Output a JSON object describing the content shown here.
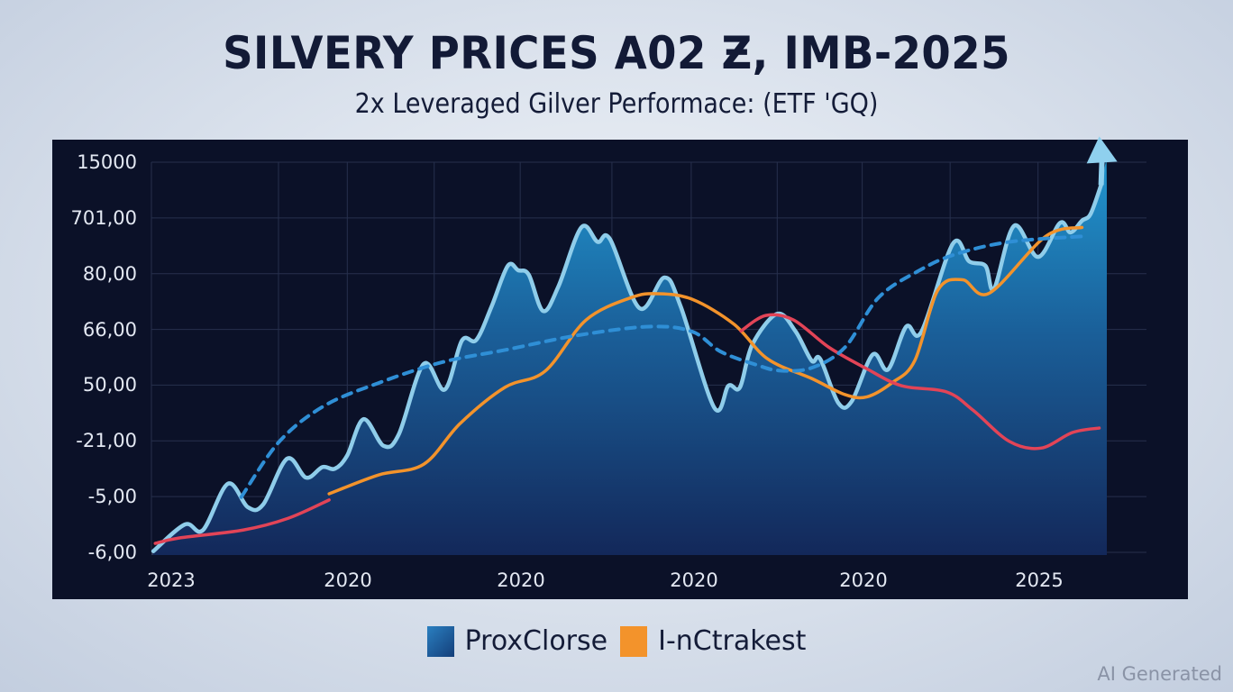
{
  "chart_data": {
    "type": "area",
    "title": "SILVERY PRICES A02 Ƶ, IMB-2025",
    "subtitle": "2x Leveraged Gilver Performace: (ETF 'GQ)",
    "xlabel": "",
    "ylabel": "",
    "y_ticks_top_to_bottom": [
      "15000",
      "701,00",
      "80,00",
      "66,00",
      "50,00",
      "-21,00",
      "-5,00",
      "-6,00"
    ],
    "y_axis_note": "Tick labels are non-monotonic; series values below are expressed in tick-index units (0 = bottom tick '-6,00', 7 = top tick '15000'); x is fraction of the time axis (0 = start, 1 = end)",
    "ylim": [
      0,
      7
    ],
    "xlim": [
      0,
      1
    ],
    "x_ticks": [
      {
        "label": "2023",
        "pos": 0.0
      },
      {
        "label": "2020",
        "pos": 0.2
      },
      {
        "label": "2020",
        "pos": 0.4
      },
      {
        "label": "2020",
        "pos": 0.6
      },
      {
        "label": "2020",
        "pos": 0.8
      },
      {
        "label": "2025",
        "pos": 1.0
      }
    ],
    "grid": true,
    "vertical_grid_positions": [
      0.0,
      0.133,
      0.205,
      0.296,
      0.386,
      0.482,
      0.565,
      0.655,
      0.744,
      0.836,
      0.928
    ],
    "legend_position": "bottom-center",
    "legend": [
      {
        "name": "ProxClorse",
        "color": "#1d5fa3"
      },
      {
        "name": "I-nCtrakest",
        "color": "#f3932b"
      }
    ],
    "series": [
      {
        "name": "ProxClorse",
        "style": "area-line",
        "line_color": "#8fcdea",
        "fill_top": "#1f8cc4",
        "fill_bottom": "#13295a",
        "end_arrow": true,
        "points": [
          [
            0.002,
            0.02
          ],
          [
            0.035,
            0.5
          ],
          [
            0.054,
            0.4
          ],
          [
            0.08,
            1.23
          ],
          [
            0.101,
            0.81
          ],
          [
            0.117,
            0.86
          ],
          [
            0.142,
            1.68
          ],
          [
            0.162,
            1.34
          ],
          [
            0.179,
            1.53
          ],
          [
            0.192,
            1.5
          ],
          [
            0.205,
            1.74
          ],
          [
            0.222,
            2.39
          ],
          [
            0.243,
            1.91
          ],
          [
            0.259,
            2.12
          ],
          [
            0.285,
            3.38
          ],
          [
            0.307,
            2.92
          ],
          [
            0.325,
            3.8
          ],
          [
            0.34,
            3.81
          ],
          [
            0.356,
            4.41
          ],
          [
            0.373,
            5.14
          ],
          [
            0.384,
            5.06
          ],
          [
            0.395,
            4.98
          ],
          [
            0.41,
            4.33
          ],
          [
            0.426,
            4.77
          ],
          [
            0.45,
            5.83
          ],
          [
            0.467,
            5.57
          ],
          [
            0.48,
            5.62
          ],
          [
            0.511,
            4.38
          ],
          [
            0.537,
            4.93
          ],
          [
            0.554,
            4.41
          ],
          [
            0.589,
            2.6
          ],
          [
            0.604,
            2.99
          ],
          [
            0.616,
            2.96
          ],
          [
            0.629,
            3.73
          ],
          [
            0.655,
            4.28
          ],
          [
            0.674,
            3.97
          ],
          [
            0.691,
            3.44
          ],
          [
            0.7,
            3.47
          ],
          [
            0.719,
            2.68
          ],
          [
            0.733,
            2.71
          ],
          [
            0.755,
            3.55
          ],
          [
            0.771,
            3.28
          ],
          [
            0.79,
            4.05
          ],
          [
            0.806,
            3.96
          ],
          [
            0.839,
            5.54
          ],
          [
            0.856,
            5.22
          ],
          [
            0.873,
            5.14
          ],
          [
            0.882,
            4.73
          ],
          [
            0.903,
            5.86
          ],
          [
            0.928,
            5.3
          ],
          [
            0.951,
            5.91
          ],
          [
            0.962,
            5.74
          ],
          [
            0.974,
            5.95
          ],
          [
            0.983,
            6.07
          ],
          [
            0.994,
            6.59
          ]
        ]
      },
      {
        "name": "I-nCtrakest",
        "style": "line",
        "color": "#f3932b",
        "points": [
          [
            0.186,
            1.05
          ],
          [
            0.238,
            1.39
          ],
          [
            0.285,
            1.58
          ],
          [
            0.323,
            2.31
          ],
          [
            0.37,
            2.96
          ],
          [
            0.412,
            3.25
          ],
          [
            0.455,
            4.17
          ],
          [
            0.502,
            4.57
          ],
          [
            0.53,
            4.64
          ],
          [
            0.566,
            4.54
          ],
          [
            0.61,
            4.09
          ],
          [
            0.645,
            3.47
          ],
          [
            0.691,
            3.12
          ],
          [
            0.726,
            2.83
          ],
          [
            0.749,
            2.79
          ],
          [
            0.775,
            3.04
          ],
          [
            0.799,
            3.44
          ],
          [
            0.823,
            4.7
          ],
          [
            0.849,
            4.89
          ],
          [
            0.877,
            4.65
          ],
          [
            0.936,
            5.67
          ],
          [
            0.974,
            5.83
          ]
        ]
      },
      {
        "name": "red-series-a",
        "style": "line",
        "color": "#e24457",
        "points": [
          [
            0.004,
            0.16
          ],
          [
            0.03,
            0.26
          ],
          [
            0.096,
            0.4
          ],
          [
            0.143,
            0.61
          ],
          [
            0.186,
            0.94
          ]
        ]
      },
      {
        "name": "red-series-b",
        "style": "line",
        "color": "#e24457",
        "points": [
          [
            0.617,
            3.97
          ],
          [
            0.643,
            4.25
          ],
          [
            0.672,
            4.17
          ],
          [
            0.709,
            3.68
          ],
          [
            0.747,
            3.31
          ],
          [
            0.785,
            2.99
          ],
          [
            0.832,
            2.88
          ],
          [
            0.86,
            2.55
          ],
          [
            0.898,
            1.99
          ],
          [
            0.931,
            1.87
          ],
          [
            0.964,
            2.15
          ],
          [
            0.992,
            2.23
          ]
        ]
      },
      {
        "name": "trend-dashed",
        "style": "dashed",
        "color": "#2f8fd6",
        "points": [
          [
            0.094,
            0.99
          ],
          [
            0.134,
            1.99
          ],
          [
            0.181,
            2.63
          ],
          [
            0.238,
            3.04
          ],
          [
            0.304,
            3.41
          ],
          [
            0.37,
            3.63
          ],
          [
            0.445,
            3.89
          ],
          [
            0.521,
            4.05
          ],
          [
            0.566,
            3.96
          ],
          [
            0.596,
            3.6
          ],
          [
            0.634,
            3.36
          ],
          [
            0.658,
            3.26
          ],
          [
            0.691,
            3.31
          ],
          [
            0.726,
            3.68
          ],
          [
            0.761,
            4.57
          ],
          [
            0.804,
            5.06
          ],
          [
            0.842,
            5.35
          ],
          [
            0.898,
            5.57
          ],
          [
            0.974,
            5.67
          ]
        ]
      }
    ]
  },
  "legend": {
    "items": [
      {
        "label": "ProxClorse",
        "color": "#1d5fa3"
      },
      {
        "label": "I-nCtrakest",
        "color": "#f3932b"
      }
    ]
  },
  "watermark": "AI Generated"
}
